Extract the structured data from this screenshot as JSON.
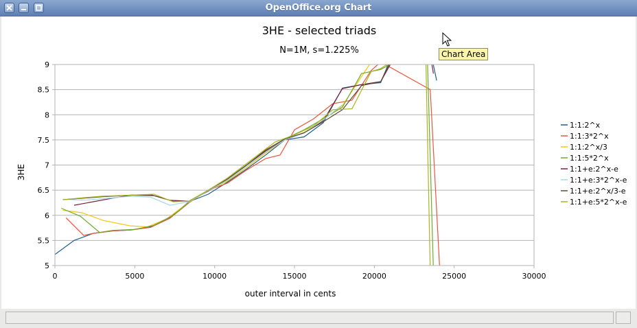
{
  "window": {
    "title": "OpenOffice.org Chart"
  },
  "tooltip": {
    "text": "Chart Area"
  },
  "chart_data": {
    "type": "line",
    "title": "3HE - selected triads",
    "subtitle": "N=1M, s=1.225%",
    "xlabel": "outer interval in cents",
    "ylabel": "3HE",
    "xlim": [
      0,
      30000
    ],
    "ylim": [
      5,
      9
    ],
    "xticks": [
      "0",
      "5000",
      "10000",
      "15000",
      "20000",
      "25000",
      "30000"
    ],
    "yticks": [
      "5",
      "5.5",
      "6",
      "6.5",
      "7",
      "7.5",
      "8",
      "8.5",
      "9"
    ],
    "grid": true,
    "legend_position": "right",
    "series": [
      {
        "name": "1:1:2^x",
        "color": "#1f5c8b",
        "points": [
          [
            0,
            5.22
          ],
          [
            1200,
            5.5
          ],
          [
            2400,
            5.64
          ],
          [
            3600,
            5.69
          ],
          [
            4800,
            5.71
          ],
          [
            6000,
            5.77
          ],
          [
            7200,
            5.96
          ],
          [
            8400,
            6.27
          ],
          [
            9600,
            6.42
          ],
          [
            10800,
            6.66
          ],
          [
            12000,
            6.92
          ],
          [
            13200,
            7.2
          ],
          [
            14400,
            7.5
          ],
          [
            15600,
            7.56
          ],
          [
            16800,
            7.84
          ],
          [
            18000,
            8.53
          ],
          [
            19200,
            8.6
          ],
          [
            20400,
            8.64
          ],
          [
            21000,
            9.1
          ],
          [
            23300,
            9.6
          ],
          [
            23900,
            8.68
          ]
        ]
      },
      {
        "name": "1:1:3*2^x",
        "color": "#e8553e",
        "points": [
          [
            700,
            5.95
          ],
          [
            1800,
            5.6
          ],
          [
            2400,
            5.64
          ],
          [
            3600,
            5.69
          ],
          [
            4800,
            5.71
          ],
          [
            6000,
            5.76
          ],
          [
            7200,
            5.94
          ],
          [
            8400,
            6.25
          ],
          [
            9600,
            6.5
          ],
          [
            10800,
            6.64
          ],
          [
            12000,
            6.9
          ],
          [
            13200,
            7.13
          ],
          [
            14100,
            7.2
          ],
          [
            15000,
            7.7
          ],
          [
            16200,
            7.92
          ],
          [
            17400,
            8.22
          ],
          [
            18600,
            8.29
          ],
          [
            19800,
            8.88
          ],
          [
            20400,
            9.05
          ],
          [
            23500,
            8.5
          ],
          [
            24100,
            4.9
          ]
        ]
      },
      {
        "name": "1:1:2^x/3",
        "color": "#f2c80f",
        "points": [
          [
            500,
            6.1
          ],
          [
            1700,
            6.05
          ],
          [
            3000,
            5.9
          ],
          [
            4700,
            5.79
          ],
          [
            5800,
            5.77
          ],
          [
            7000,
            5.93
          ],
          [
            8400,
            6.26
          ],
          [
            9600,
            6.49
          ],
          [
            10800,
            6.68
          ],
          [
            12000,
            6.95
          ],
          [
            13200,
            7.24
          ],
          [
            14400,
            7.5
          ],
          [
            15600,
            7.65
          ],
          [
            16800,
            7.9
          ],
          [
            18000,
            8.18
          ],
          [
            19800,
            9.05
          ]
        ]
      },
      {
        "name": "1:1:5*2^x",
        "color": "#6fa832",
        "points": [
          [
            400,
            6.14
          ],
          [
            1600,
            5.98
          ],
          [
            2800,
            5.66
          ],
          [
            3600,
            5.7
          ],
          [
            5000,
            5.72
          ],
          [
            6200,
            5.8
          ],
          [
            7400,
            6.0
          ],
          [
            8400,
            6.26
          ],
          [
            9600,
            6.5
          ],
          [
            10800,
            6.7
          ],
          [
            12000,
            6.98
          ],
          [
            13200,
            7.26
          ],
          [
            14400,
            7.52
          ],
          [
            15600,
            7.7
          ],
          [
            16800,
            7.92
          ],
          [
            18000,
            8.15
          ],
          [
            19200,
            8.82
          ],
          [
            20400,
            8.9
          ],
          [
            23300,
            9.4
          ],
          [
            23700,
            4.9
          ]
        ]
      },
      {
        "name": "1:1+e:2^x-e",
        "color": "#7a1f3a",
        "points": [
          [
            1200,
            6.2
          ],
          [
            2400,
            6.27
          ],
          [
            3600,
            6.34
          ],
          [
            4800,
            6.4
          ],
          [
            6000,
            6.41
          ],
          [
            7200,
            6.3
          ],
          [
            8400,
            6.28
          ],
          [
            9600,
            6.48
          ],
          [
            10800,
            6.72
          ],
          [
            12000,
            7.0
          ],
          [
            13200,
            7.28
          ],
          [
            14400,
            7.5
          ],
          [
            15600,
            7.64
          ],
          [
            16800,
            7.88
          ],
          [
            18000,
            8.52
          ],
          [
            19200,
            8.6
          ],
          [
            20400,
            8.66
          ],
          [
            21000,
            9.0
          ],
          [
            23400,
            9.4
          ],
          [
            23700,
            8.82
          ]
        ]
      },
      {
        "name": "1:1+e:3*2^x-e",
        "color": "#a8d8ea",
        "points": [
          [
            500,
            6.32
          ],
          [
            1800,
            6.3
          ],
          [
            3000,
            6.33
          ],
          [
            4800,
            6.38
          ],
          [
            6000,
            6.36
          ],
          [
            7200,
            6.2
          ],
          [
            8400,
            6.27
          ],
          [
            9600,
            6.49
          ],
          [
            10800,
            6.7
          ],
          [
            12000,
            6.98
          ],
          [
            13200,
            7.26
          ],
          [
            14400,
            7.5
          ],
          [
            15600,
            7.64
          ],
          [
            16800,
            7.9
          ],
          [
            18000,
            8.2
          ]
        ]
      },
      {
        "name": "1:1+e:2^x/3-e",
        "color": "#5a4a34",
        "points": [
          [
            500,
            6.31
          ],
          [
            1800,
            6.34
          ],
          [
            3000,
            6.37
          ],
          [
            4800,
            6.4
          ],
          [
            6200,
            6.39
          ],
          [
            7400,
            6.28
          ],
          [
            8400,
            6.28
          ],
          [
            9600,
            6.5
          ],
          [
            10800,
            6.72
          ],
          [
            12000,
            7.0
          ],
          [
            13200,
            7.3
          ],
          [
            14400,
            7.52
          ],
          [
            15600,
            7.64
          ],
          [
            16800,
            7.86
          ],
          [
            18000,
            8.1
          ],
          [
            19200,
            8.58
          ],
          [
            20400,
            8.66
          ],
          [
            21000,
            9.05
          ]
        ]
      },
      {
        "name": "1:1+e:5*2^x-e",
        "color": "#a9b51f",
        "points": [
          [
            500,
            6.31
          ],
          [
            1800,
            6.35
          ],
          [
            3000,
            6.38
          ],
          [
            4800,
            6.4
          ],
          [
            6200,
            6.42
          ],
          [
            7400,
            6.27
          ],
          [
            8400,
            6.28
          ],
          [
            9600,
            6.5
          ],
          [
            10800,
            6.74
          ],
          [
            12000,
            7.03
          ],
          [
            13200,
            7.32
          ],
          [
            13800,
            7.46
          ],
          [
            15000,
            7.6
          ],
          [
            16200,
            7.78
          ],
          [
            17400,
            8.1
          ],
          [
            18600,
            8.12
          ],
          [
            19800,
            8.86
          ],
          [
            20400,
            8.92
          ],
          [
            23200,
            9.5
          ],
          [
            23500,
            4.9
          ]
        ]
      }
    ]
  }
}
